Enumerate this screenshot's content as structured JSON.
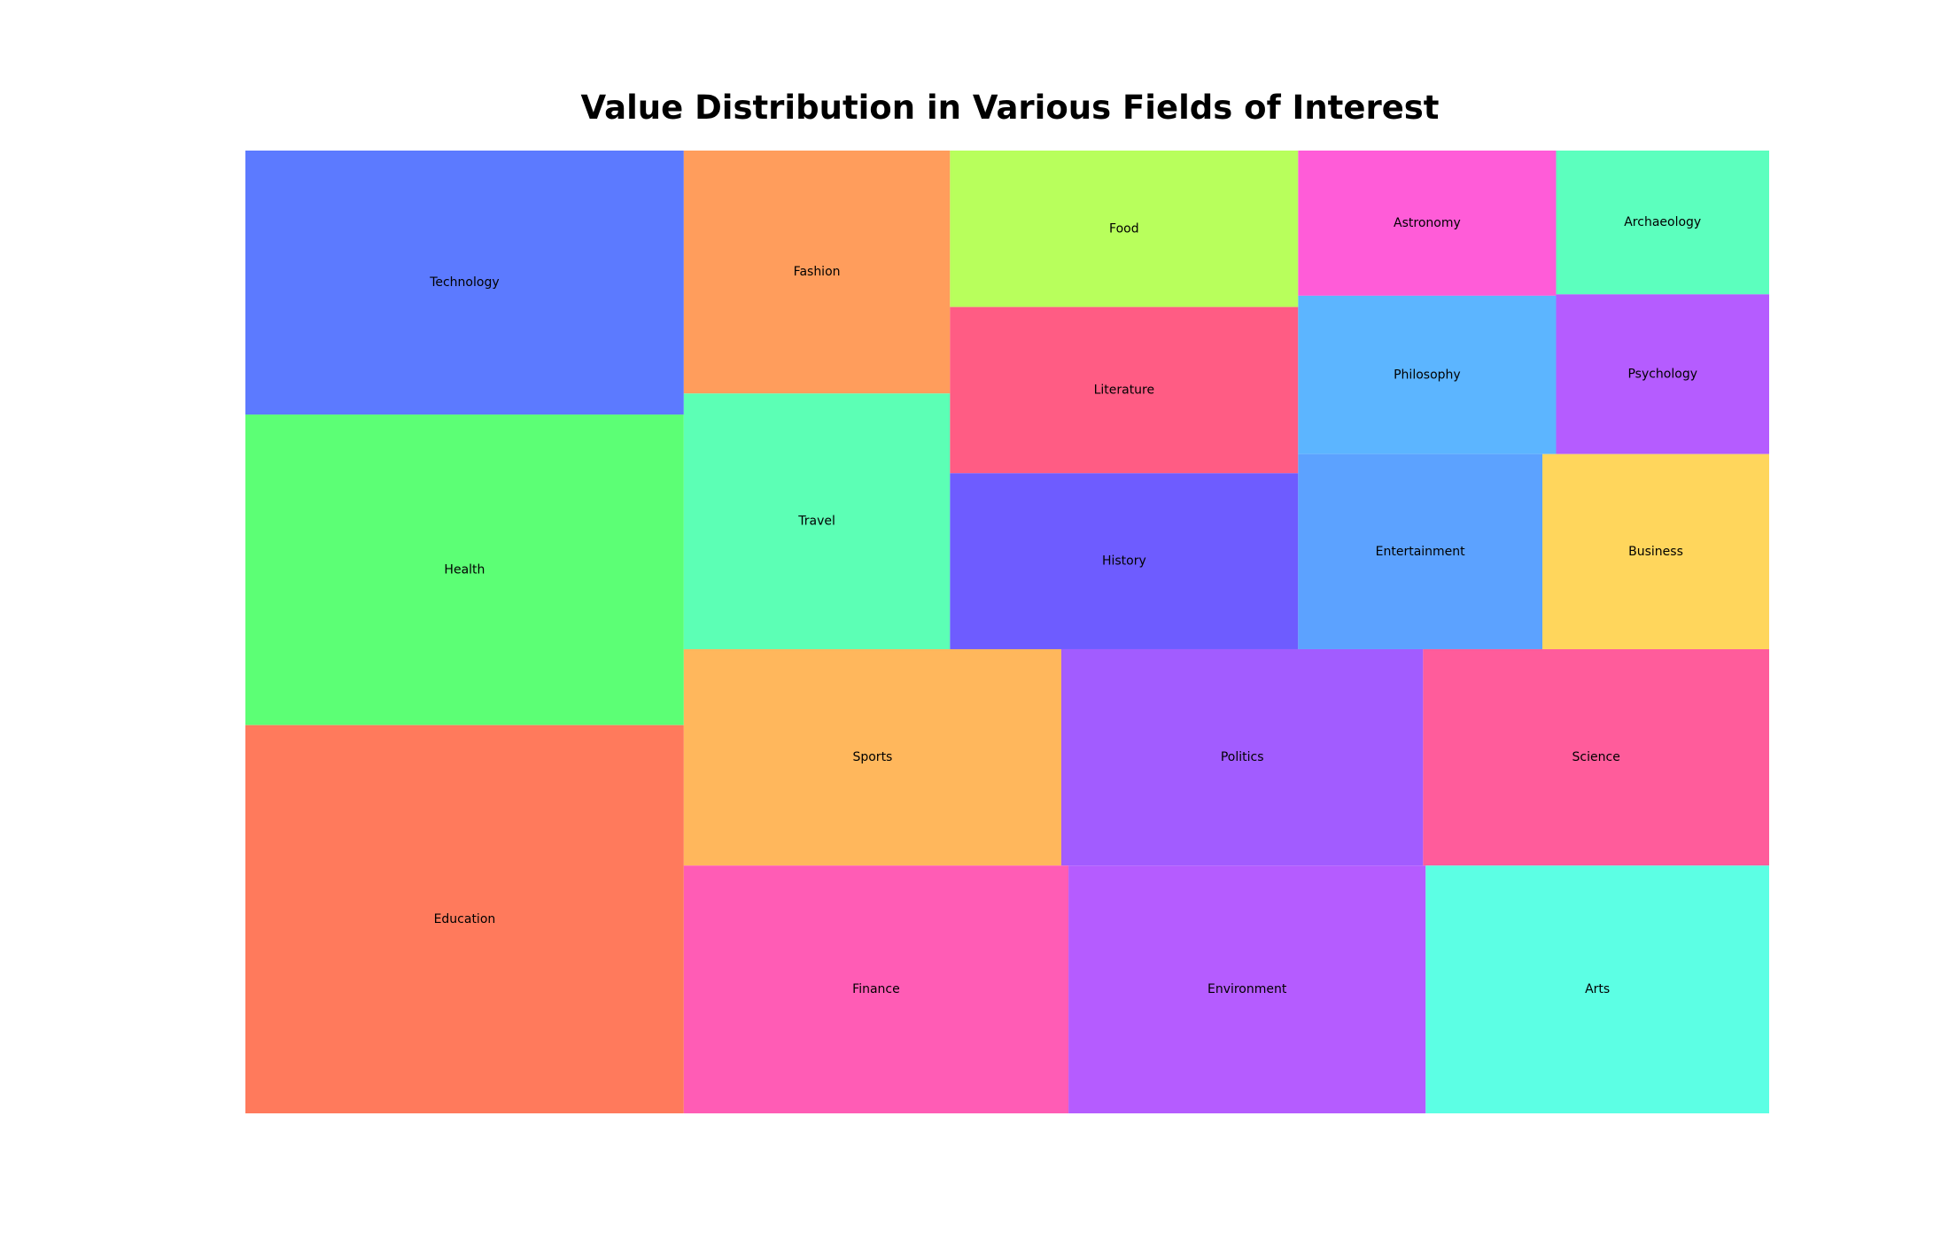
{
  "chart_data": {
    "type": "treemap",
    "title": "Value Distribution in Various Fields of Interest",
    "items": [
      {
        "label": "Education",
        "value": 25,
        "color": "#FF7A5C"
      },
      {
        "label": "Health",
        "value": 20,
        "color": "#5CFF75"
      },
      {
        "label": "Technology",
        "value": 17,
        "color": "#5C7AFF"
      },
      {
        "label": "Finance",
        "value": 14,
        "color": "#FF5CB5"
      },
      {
        "label": "Environment",
        "value": 13,
        "color": "#B55CFF"
      },
      {
        "label": "Arts",
        "value": 12.5,
        "color": "#5CFFE4"
      },
      {
        "label": "Sports",
        "value": 12,
        "color": "#FFB75C"
      },
      {
        "label": "Politics",
        "value": 11.5,
        "color": "#A25CFF"
      },
      {
        "label": "Science",
        "value": 11,
        "color": "#FF5C9B"
      },
      {
        "label": "Travel",
        "value": 10,
        "color": "#5CFFB5"
      },
      {
        "label": "Fashion",
        "value": 9.5,
        "color": "#FF9D5C"
      },
      {
        "label": "History",
        "value": 9,
        "color": "#6E5CFF"
      },
      {
        "label": "Literature",
        "value": 8.5,
        "color": "#FF5C84"
      },
      {
        "label": "Food",
        "value": 8,
        "color": "#B8FF5C"
      },
      {
        "label": "Entertainment",
        "value": 7,
        "color": "#5CA2FF"
      },
      {
        "label": "Business",
        "value": 6.5,
        "color": "#FFD65C"
      },
      {
        "label": "Philosophy",
        "value": 6,
        "color": "#5CB5FF"
      },
      {
        "label": "Psychology",
        "value": 5,
        "color": "#B55CFF"
      },
      {
        "label": "Astronomy",
        "value": 5.5,
        "color": "#FF5CD8"
      },
      {
        "label": "Archaeology",
        "value": 4.5,
        "color": "#5CFFBE"
      }
    ]
  }
}
